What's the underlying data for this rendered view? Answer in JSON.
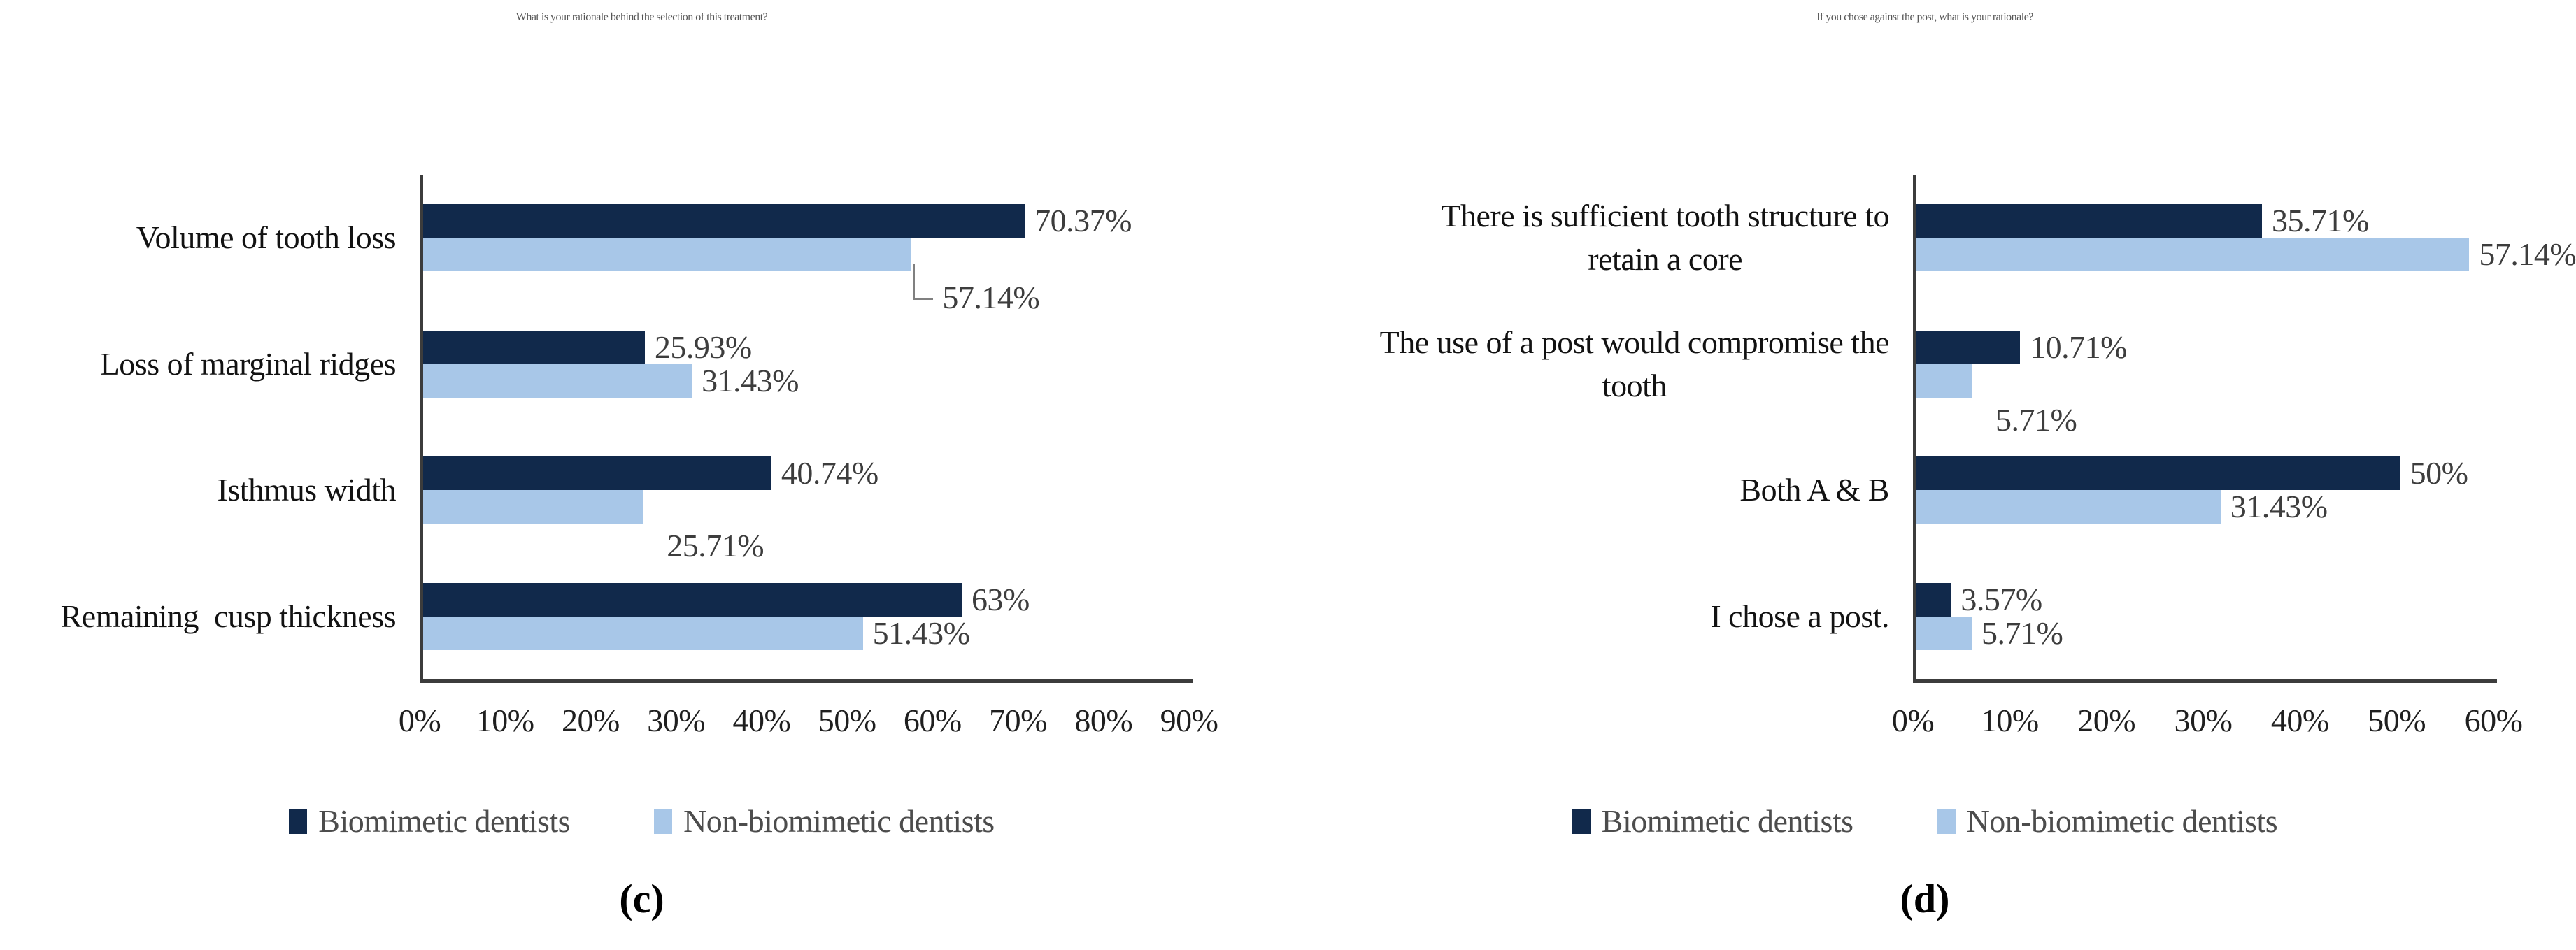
{
  "figure": {
    "legend": [
      {
        "name": "Biomimetic dentists",
        "color": "#11294b"
      },
      {
        "name": "Non-biomimetic dentists",
        "color": "#a8c7e8"
      }
    ]
  },
  "chart_data": [
    {
      "type": "bar",
      "orientation": "horizontal",
      "title": "What is your rationale behind the selection of this treatment?",
      "caption": "(c)",
      "categories": [
        "Volume of tooth loss",
        "Loss of marginal ridges",
        "Isthmus width",
        "Remaining  cusp thickness"
      ],
      "category_lines": [
        [
          "Volume of tooth loss"
        ],
        [
          "Loss of marginal ridges"
        ],
        [
          "Isthmus width"
        ],
        [
          "Remaining  cusp thickness"
        ]
      ],
      "series": [
        {
          "name": "Biomimetic dentists",
          "values": [
            70.37,
            25.93,
            40.74,
            63
          ],
          "labels": [
            "70.37%",
            "25.93%",
            "40.74%",
            "63%"
          ]
        },
        {
          "name": "Non-biomimetic dentists",
          "values": [
            57.14,
            31.43,
            25.71,
            51.43
          ],
          "labels": [
            "57.14%",
            "31.43%",
            "25.71%",
            "51.43%"
          ]
        }
      ],
      "xlim": [
        0,
        90
      ],
      "xticks": [
        "0%",
        "10%",
        "20%",
        "30%",
        "40%",
        "50%",
        "60%",
        "70%",
        "80%",
        "90%"
      ],
      "grid": false,
      "legend_position": "bottom",
      "label_placement": {
        "series0": [
          "right",
          "right",
          "right",
          "right"
        ],
        "series1": [
          "leader",
          "right",
          "below",
          "right"
        ]
      }
    },
    {
      "type": "bar",
      "orientation": "horizontal",
      "title": "If you chose against the post, what is your rationale?",
      "caption": "(d)",
      "categories": [
        "There is sufficient tooth structure to retain a core",
        "The use of a post would compromise the tooth",
        "Both A & B",
        "I chose a post."
      ],
      "category_lines": [
        [
          "There is sufficient tooth structure to",
          "retain a core"
        ],
        [
          "The use of a post would compromise the",
          "tooth"
        ],
        [
          "Both A & B"
        ],
        [
          "I chose a post."
        ]
      ],
      "series": [
        {
          "name": "Biomimetic dentists",
          "values": [
            35.71,
            10.71,
            50,
            3.57
          ],
          "labels": [
            "35.71%",
            "10.71%",
            "50%",
            "3.57%"
          ]
        },
        {
          "name": "Non-biomimetic dentists",
          "values": [
            57.14,
            5.71,
            31.43,
            5.71
          ],
          "labels": [
            "57.14%",
            "5.71%",
            "31.43%",
            "5.71%"
          ]
        }
      ],
      "xlim": [
        0,
        60
      ],
      "xticks": [
        "0%",
        "10%",
        "20%",
        "30%",
        "40%",
        "50%",
        "60%"
      ],
      "grid": false,
      "legend_position": "bottom",
      "label_placement": {
        "series0": [
          "right",
          "right",
          "right",
          "right"
        ],
        "series1": [
          "right",
          "below",
          "right",
          "right"
        ]
      }
    }
  ]
}
